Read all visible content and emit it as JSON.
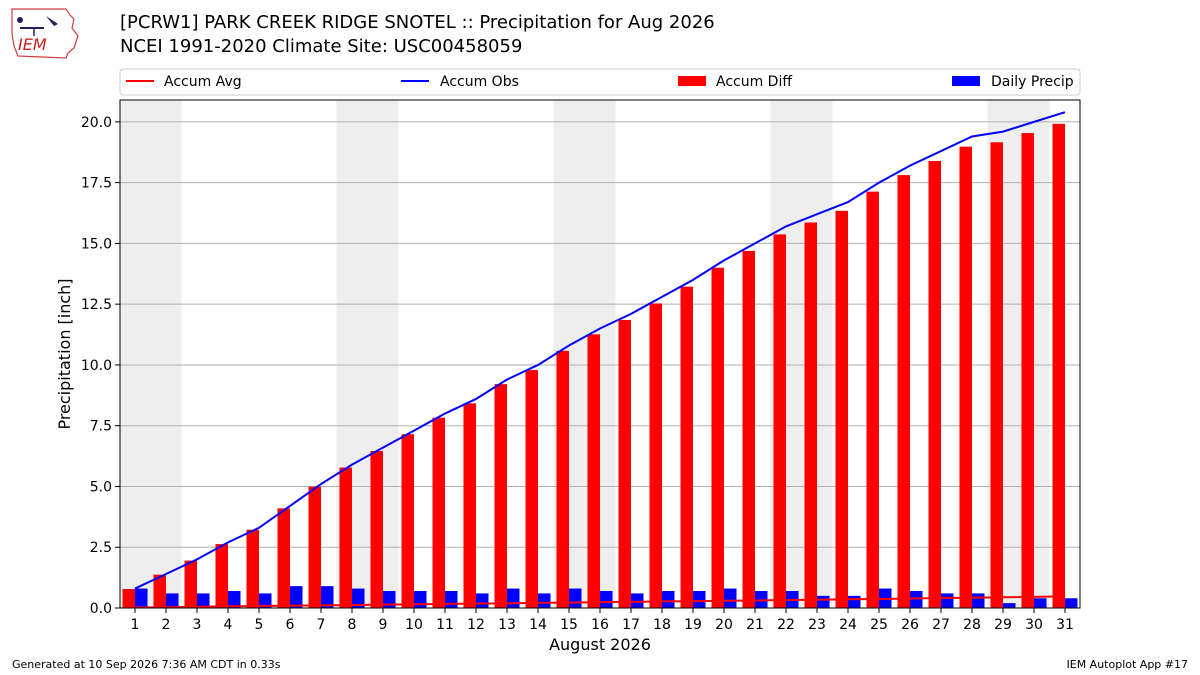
{
  "header": {
    "title_line1": "[PCRW1] PARK CREEK RIDGE SNOTEL :: Precipitation for Aug 2026",
    "title_line2": "NCEI 1991-2020 Climate Site: USC00458059"
  },
  "logo": {
    "text": "IEM",
    "icon": "iem-iowa-logo"
  },
  "footer": {
    "generated": "Generated at 10 Sep 2026 7:36 AM CDT in 0.33s",
    "app": "IEM Autoplot App #17"
  },
  "colors": {
    "accum_avg": "#ff0000",
    "accum_obs": "#0000ff",
    "accum_diff": "#ff0000",
    "daily_precip": "#0000ff",
    "weekend_shade": "#eeeeee",
    "grid": "#b0b0b0"
  },
  "chart_data": {
    "type": "bar",
    "xlabel": "August 2026",
    "ylabel": "Precipitation [inch]",
    "ylim": [
      0,
      20.9
    ],
    "yticks": [
      "0.0",
      "2.5",
      "5.0",
      "7.5",
      "10.0",
      "12.5",
      "15.0",
      "17.5",
      "20.0"
    ],
    "ytick_values": [
      0,
      2.5,
      5,
      7.5,
      10,
      12.5,
      15,
      17.5,
      20
    ],
    "days": [
      1,
      2,
      3,
      4,
      5,
      6,
      7,
      8,
      9,
      10,
      11,
      12,
      13,
      14,
      15,
      16,
      17,
      18,
      19,
      20,
      21,
      22,
      23,
      24,
      25,
      26,
      27,
      28,
      29,
      30,
      31
    ],
    "weekend_spans": [
      [
        1,
        2
      ],
      [
        8,
        9
      ],
      [
        15,
        16
      ],
      [
        22,
        23
      ],
      [
        29,
        30
      ]
    ],
    "grid": true,
    "legend": {
      "placement": "top",
      "entries": [
        "Accum Avg",
        "Accum Obs",
        "Accum Diff",
        "Daily Precip"
      ]
    },
    "series": [
      {
        "name": "Accum Avg",
        "kind": "line",
        "values": [
          0.02,
          0.03,
          0.05,
          0.07,
          0.08,
          0.1,
          0.11,
          0.12,
          0.14,
          0.15,
          0.17,
          0.18,
          0.19,
          0.21,
          0.22,
          0.24,
          0.25,
          0.27,
          0.28,
          0.3,
          0.31,
          0.33,
          0.34,
          0.36,
          0.37,
          0.39,
          0.41,
          0.42,
          0.44,
          0.46,
          0.48
        ]
      },
      {
        "name": "Accum Obs",
        "kind": "line",
        "values": [
          0.8,
          1.4,
          2.0,
          2.7,
          3.3,
          4.2,
          5.1,
          5.9,
          6.6,
          7.3,
          8.0,
          8.6,
          9.4,
          10.0,
          10.8,
          11.5,
          12.1,
          12.8,
          13.5,
          14.3,
          15.0,
          15.7,
          16.2,
          16.7,
          17.5,
          18.2,
          18.8,
          19.4,
          19.6,
          20.0,
          20.4
        ]
      },
      {
        "name": "Accum Diff",
        "kind": "bar",
        "values": [
          0.78,
          1.37,
          1.95,
          2.63,
          3.22,
          4.1,
          4.99,
          5.78,
          6.46,
          7.15,
          7.83,
          8.42,
          9.21,
          9.79,
          10.58,
          11.26,
          11.85,
          12.53,
          13.22,
          14.0,
          14.69,
          15.37,
          15.86,
          16.34,
          17.13,
          17.81,
          18.39,
          18.98,
          19.16,
          19.54,
          19.92
        ]
      },
      {
        "name": "Daily Precip",
        "kind": "bar",
        "values": [
          0.8,
          0.6,
          0.6,
          0.7,
          0.6,
          0.9,
          0.9,
          0.8,
          0.7,
          0.7,
          0.7,
          0.6,
          0.8,
          0.6,
          0.8,
          0.7,
          0.6,
          0.7,
          0.7,
          0.8,
          0.7,
          0.7,
          0.5,
          0.5,
          0.8,
          0.7,
          0.6,
          0.6,
          0.2,
          0.4,
          0.4
        ]
      }
    ]
  }
}
